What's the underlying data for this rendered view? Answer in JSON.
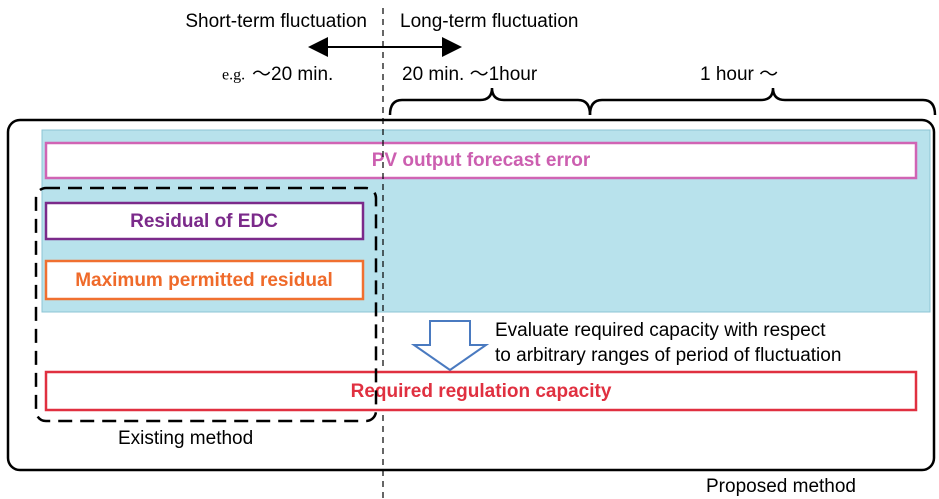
{
  "header": {
    "short_term": "Short-term fluctuation",
    "long_term": "Long-term fluctuation",
    "eg": "e.g.",
    "short_range": "～20 min.",
    "mid_range": "20 min. ～1hour",
    "long_range": "1 hour ～"
  },
  "boxes": {
    "pv_error": "PV output forecast error",
    "residual_edc": "Residual of EDC",
    "max_residual": "Maximum permitted residual",
    "required_capacity": "Required regulation capacity"
  },
  "note": {
    "line1": "Evaluate required capacity with respect",
    "line2": "to arbitrary ranges of period of fluctuation"
  },
  "labels": {
    "existing": "Existing method",
    "proposed": "Proposed method"
  }
}
